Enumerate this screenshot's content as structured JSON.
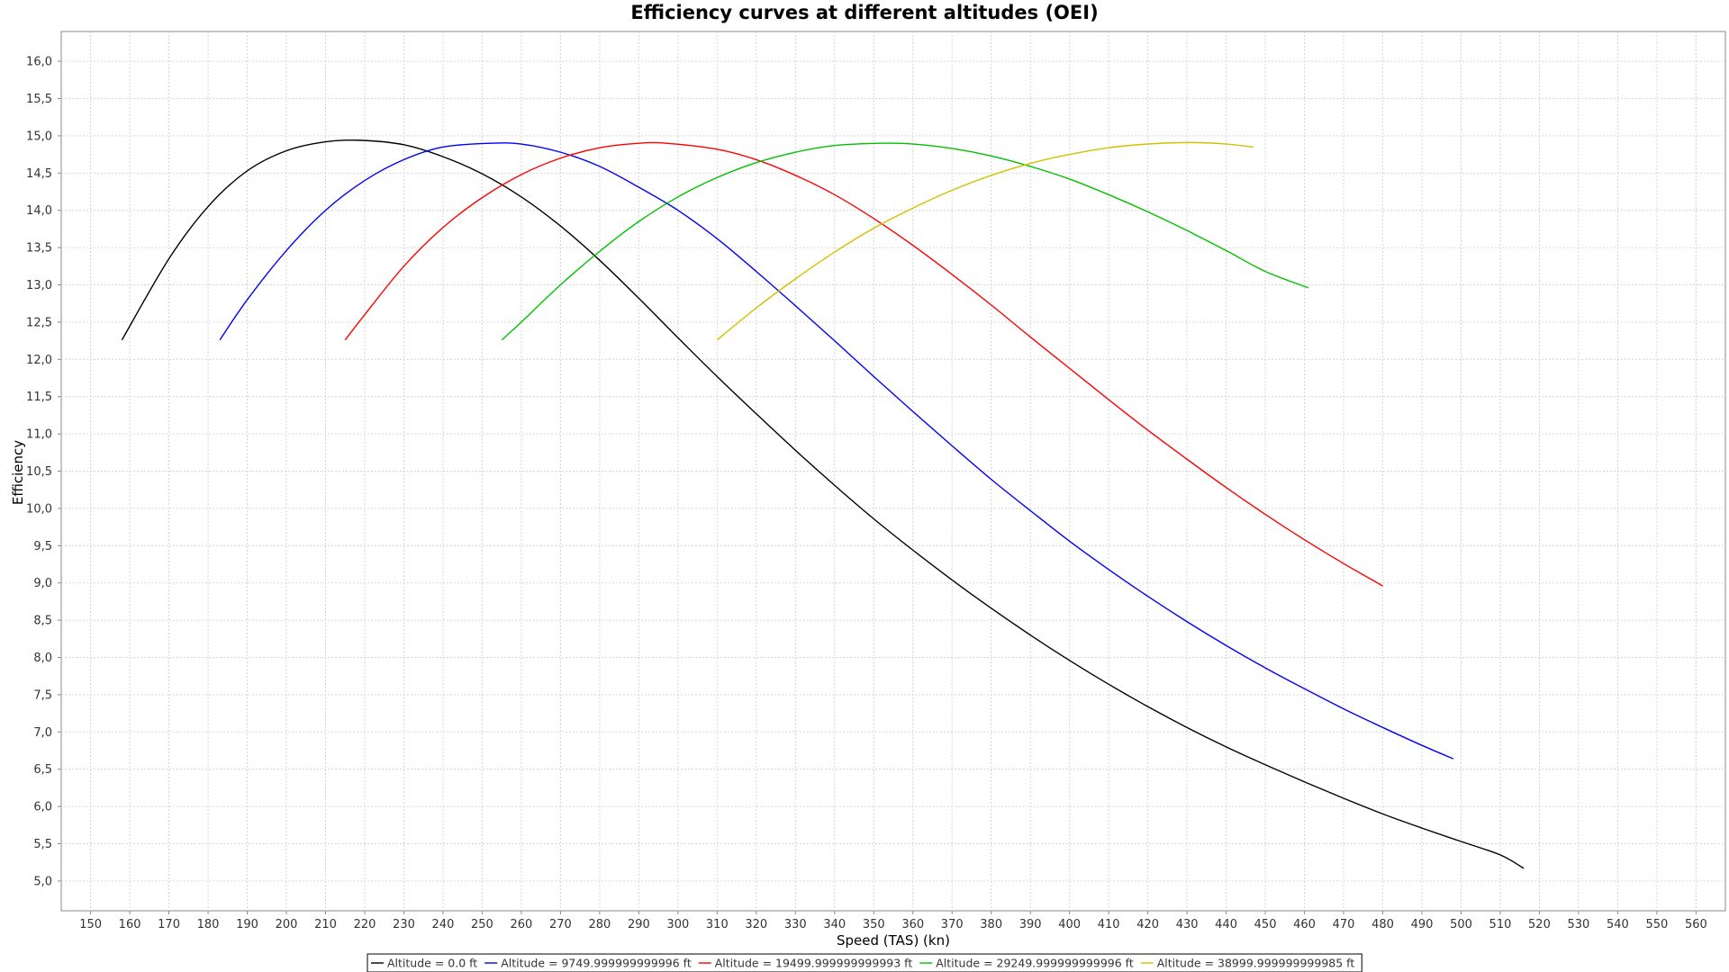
{
  "chart_data": {
    "type": "line",
    "title": "Efficiency curves at different altitudes (OEI)",
    "xlabel": "Speed (TAS) (kn)",
    "ylabel": "Efficiency",
    "xlim": [
      142.5,
      567.5
    ],
    "ylim": [
      4.6,
      16.4
    ],
    "x_ticks": [
      150,
      160,
      170,
      180,
      190,
      200,
      210,
      220,
      230,
      240,
      250,
      260,
      270,
      280,
      290,
      300,
      310,
      320,
      330,
      340,
      350,
      360,
      370,
      380,
      390,
      400,
      410,
      420,
      430,
      440,
      450,
      460,
      470,
      480,
      490,
      500,
      510,
      520,
      530,
      540,
      550,
      560
    ],
    "x_tick_labels": [
      "150",
      "160",
      "170",
      "180",
      "190",
      "200",
      "210",
      "220",
      "230",
      "240",
      "250",
      "260",
      "270",
      "280",
      "290",
      "300",
      "310",
      "320",
      "330",
      "340",
      "350",
      "360",
      "370",
      "380",
      "390",
      "400",
      "410",
      "420",
      "430",
      "440",
      "450",
      "460",
      "470",
      "480",
      "490",
      "500",
      "510",
      "520",
      "530",
      "540",
      "550",
      "560"
    ],
    "y_ticks": [
      5.0,
      5.5,
      6.0,
      6.5,
      7.0,
      7.5,
      8.0,
      8.5,
      9.0,
      9.5,
      10.0,
      10.5,
      11.0,
      11.5,
      12.0,
      12.5,
      13.0,
      13.5,
      14.0,
      14.5,
      15.0,
      15.5,
      16.0
    ],
    "y_tick_labels": [
      "5,0",
      "5,5",
      "6,0",
      "6,5",
      "7,0",
      "7,5",
      "8,0",
      "8,5",
      "9,0",
      "9,5",
      "10,0",
      "10,5",
      "11,0",
      "11,5",
      "12,0",
      "12,5",
      "13,0",
      "13,5",
      "14,0",
      "14,5",
      "15,0",
      "15,5",
      "16,0"
    ],
    "grid": true,
    "legend_position": "bottom",
    "series": [
      {
        "name": "Altitude = 0.0 ft",
        "color": "#000000",
        "x": [
          158,
          170,
          180,
          190,
          200,
          210,
          219,
          230,
          240,
          250,
          260,
          270,
          280,
          290,
          300,
          310,
          320,
          330,
          340,
          350,
          360,
          370,
          380,
          390,
          400,
          410,
          420,
          430,
          440,
          450,
          460,
          470,
          480,
          490,
          500,
          510,
          516
        ],
        "y": [
          12.26,
          13.35,
          14.05,
          14.53,
          14.8,
          14.92,
          14.94,
          14.88,
          14.72,
          14.49,
          14.18,
          13.79,
          13.33,
          12.82,
          12.29,
          11.77,
          11.27,
          10.78,
          10.31,
          9.86,
          9.44,
          9.04,
          8.66,
          8.3,
          7.96,
          7.64,
          7.34,
          7.06,
          6.8,
          6.56,
          6.33,
          6.11,
          5.9,
          5.71,
          5.53,
          5.35,
          5.17
        ]
      },
      {
        "name": "Altitude = 9749.999999999996 ft",
        "color": "#0000ff",
        "x": [
          183,
          190,
          200,
          210,
          220,
          230,
          240,
          252,
          260,
          270,
          280,
          290,
          300,
          310,
          320,
          330,
          340,
          350,
          360,
          370,
          380,
          390,
          400,
          410,
          420,
          430,
          440,
          450,
          460,
          470,
          480,
          490,
          498
        ],
        "y": [
          12.26,
          12.8,
          13.46,
          14.0,
          14.4,
          14.68,
          14.85,
          14.9,
          14.89,
          14.78,
          14.59,
          14.31,
          14.0,
          13.62,
          13.18,
          12.72,
          12.25,
          11.77,
          11.3,
          10.84,
          10.39,
          9.97,
          9.56,
          9.18,
          8.82,
          8.48,
          8.16,
          7.86,
          7.58,
          7.31,
          7.06,
          6.82,
          6.64
        ]
      },
      {
        "name": "Altitude = 19499.999999999993 ft",
        "color": "#ff0000",
        "x": [
          215,
          220,
          230,
          240,
          250,
          260,
          270,
          280,
          290,
          297,
          310,
          320,
          330,
          340,
          350,
          360,
          370,
          380,
          390,
          400,
          410,
          420,
          430,
          440,
          450,
          460,
          470,
          480
        ],
        "y": [
          12.26,
          12.6,
          13.25,
          13.77,
          14.17,
          14.48,
          14.7,
          14.84,
          14.9,
          14.9,
          14.82,
          14.68,
          14.47,
          14.21,
          13.89,
          13.53,
          13.14,
          12.73,
          12.3,
          11.88,
          11.46,
          11.05,
          10.66,
          10.28,
          9.92,
          9.58,
          9.26,
          8.96
        ]
      },
      {
        "name": "Altitude = 29249.999999999996 ft",
        "color": "#00c000",
        "x": [
          255,
          260,
          270,
          280,
          290,
          300,
          310,
          320,
          330,
          340,
          352,
          360,
          370,
          380,
          390,
          400,
          410,
          420,
          430,
          440,
          450,
          461
        ],
        "y": [
          12.26,
          12.5,
          13.0,
          13.45,
          13.85,
          14.18,
          14.44,
          14.64,
          14.78,
          14.87,
          14.9,
          14.89,
          14.83,
          14.73,
          14.59,
          14.42,
          14.21,
          13.98,
          13.73,
          13.46,
          13.18,
          12.96
        ]
      },
      {
        "name": "Altitude = 38999.999999999985 ft",
        "color": "#d2c000",
        "x": [
          310,
          320,
          330,
          340,
          350,
          360,
          370,
          380,
          390,
          400,
          410,
          420,
          431,
          440,
          447
        ],
        "y": [
          12.26,
          12.69,
          13.08,
          13.44,
          13.76,
          14.03,
          14.27,
          14.47,
          14.63,
          14.75,
          14.84,
          14.89,
          14.91,
          14.89,
          14.85
        ]
      }
    ]
  }
}
